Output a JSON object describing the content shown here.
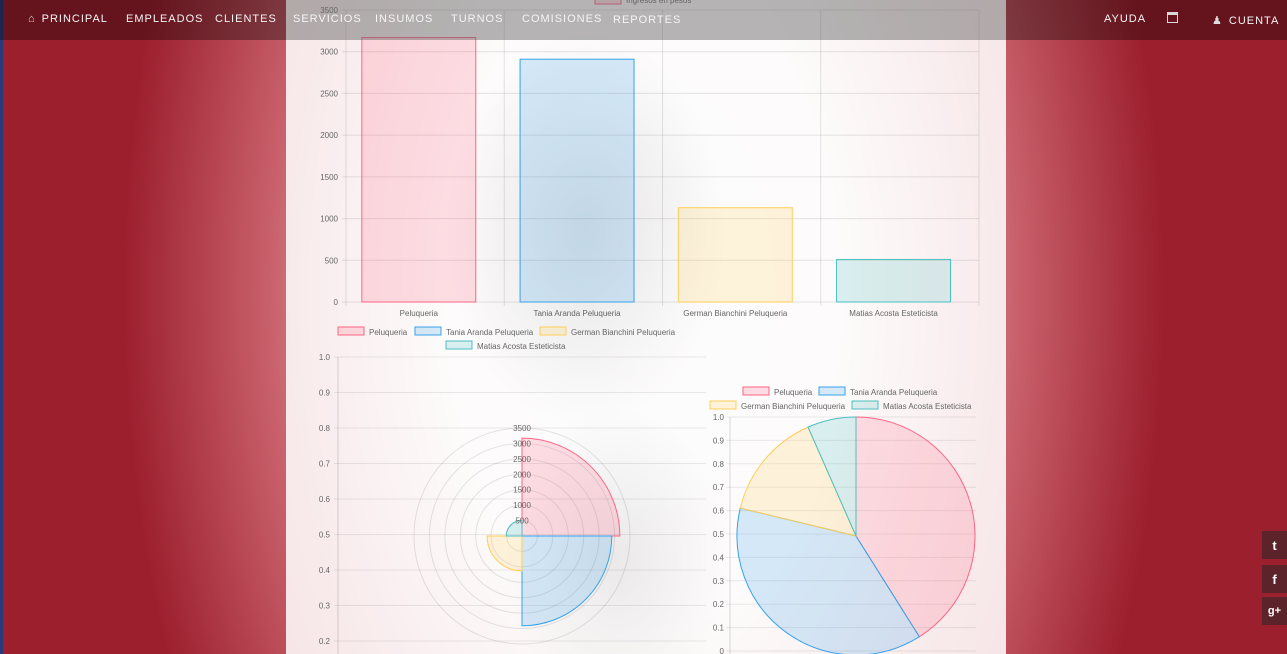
{
  "navbar": {
    "items": [
      {
        "label": "PRINCIPAL",
        "icon": "home-icon"
      },
      {
        "label": "EMPLEADOS"
      },
      {
        "label": "CLIENTES"
      },
      {
        "label": "SERVICIOS"
      },
      {
        "label": "INSUMOS"
      },
      {
        "label": "TURNOS"
      },
      {
        "label": "COMISIONES"
      },
      {
        "label": "REPORTES"
      }
    ],
    "help_label": "AYUDA",
    "account_label": "CUENTA",
    "calendar_icon": "calendar-icon",
    "account_icon": "user-icon"
  },
  "social": [
    {
      "icon": "twitter-icon",
      "glyph": "t"
    },
    {
      "icon": "facebook-icon",
      "glyph": "f"
    },
    {
      "icon": "google-plus-icon",
      "glyph": "g+"
    }
  ],
  "colors": {
    "pink": "#ff6384",
    "blue": "#36a2eb",
    "yellow": "#ffce56",
    "teal": "#4bc0c0",
    "bg_red": "#9c1f2e"
  },
  "chart_data": [
    {
      "type": "bar",
      "legend_top": "Ingresos en pesos",
      "categories": [
        "Peluqueria",
        "Tania Aranda Peluqueria",
        "German Bianchini Peluqueria",
        "Matias Acosta Esteticista"
      ],
      "values": [
        3170,
        2910,
        1130,
        510
      ],
      "yticks": [
        0,
        500,
        1000,
        1500,
        2000,
        2500,
        3000,
        3500
      ],
      "ylim": [
        0,
        3500
      ],
      "legend": [
        "Peluqueria",
        "Tania Aranda Peluqueria",
        "German Bianchini Peluqueria",
        "Matias Acosta Esteticista"
      ]
    },
    {
      "type": "polarArea",
      "categories": [
        "Peluqueria",
        "Tania Aranda Peluqueria",
        "German Bianchini Peluqueria",
        "Matias Acosta Esteticista"
      ],
      "values": [
        3170,
        2910,
        1130,
        510
      ],
      "rticks": [
        500,
        1000,
        1500,
        2000,
        2500,
        3000,
        3500
      ],
      "axis_ticks": [
        "1.0",
        "0.9",
        "0.8",
        "0.7",
        "0.6",
        "0.5",
        "0.4",
        "0.3",
        "0.2"
      ]
    },
    {
      "type": "pie",
      "categories": [
        "Peluqueria",
        "Tania Aranda Peluqueria",
        "German Bianchini Peluqueria",
        "Matias Acosta Esteticista"
      ],
      "values": [
        3170,
        2910,
        1130,
        510
      ],
      "legend": [
        "Peluqueria",
        "Tania Aranda Peluqueria",
        "German Bianchini Peluqueria",
        "Matias Acosta Esteticista"
      ],
      "axis_ticks": [
        "1.0",
        "0.9",
        "0.8",
        "0.7",
        "0.6",
        "0.5",
        "0.4",
        "0.3",
        "0.2",
        "0.1",
        "0"
      ]
    }
  ]
}
